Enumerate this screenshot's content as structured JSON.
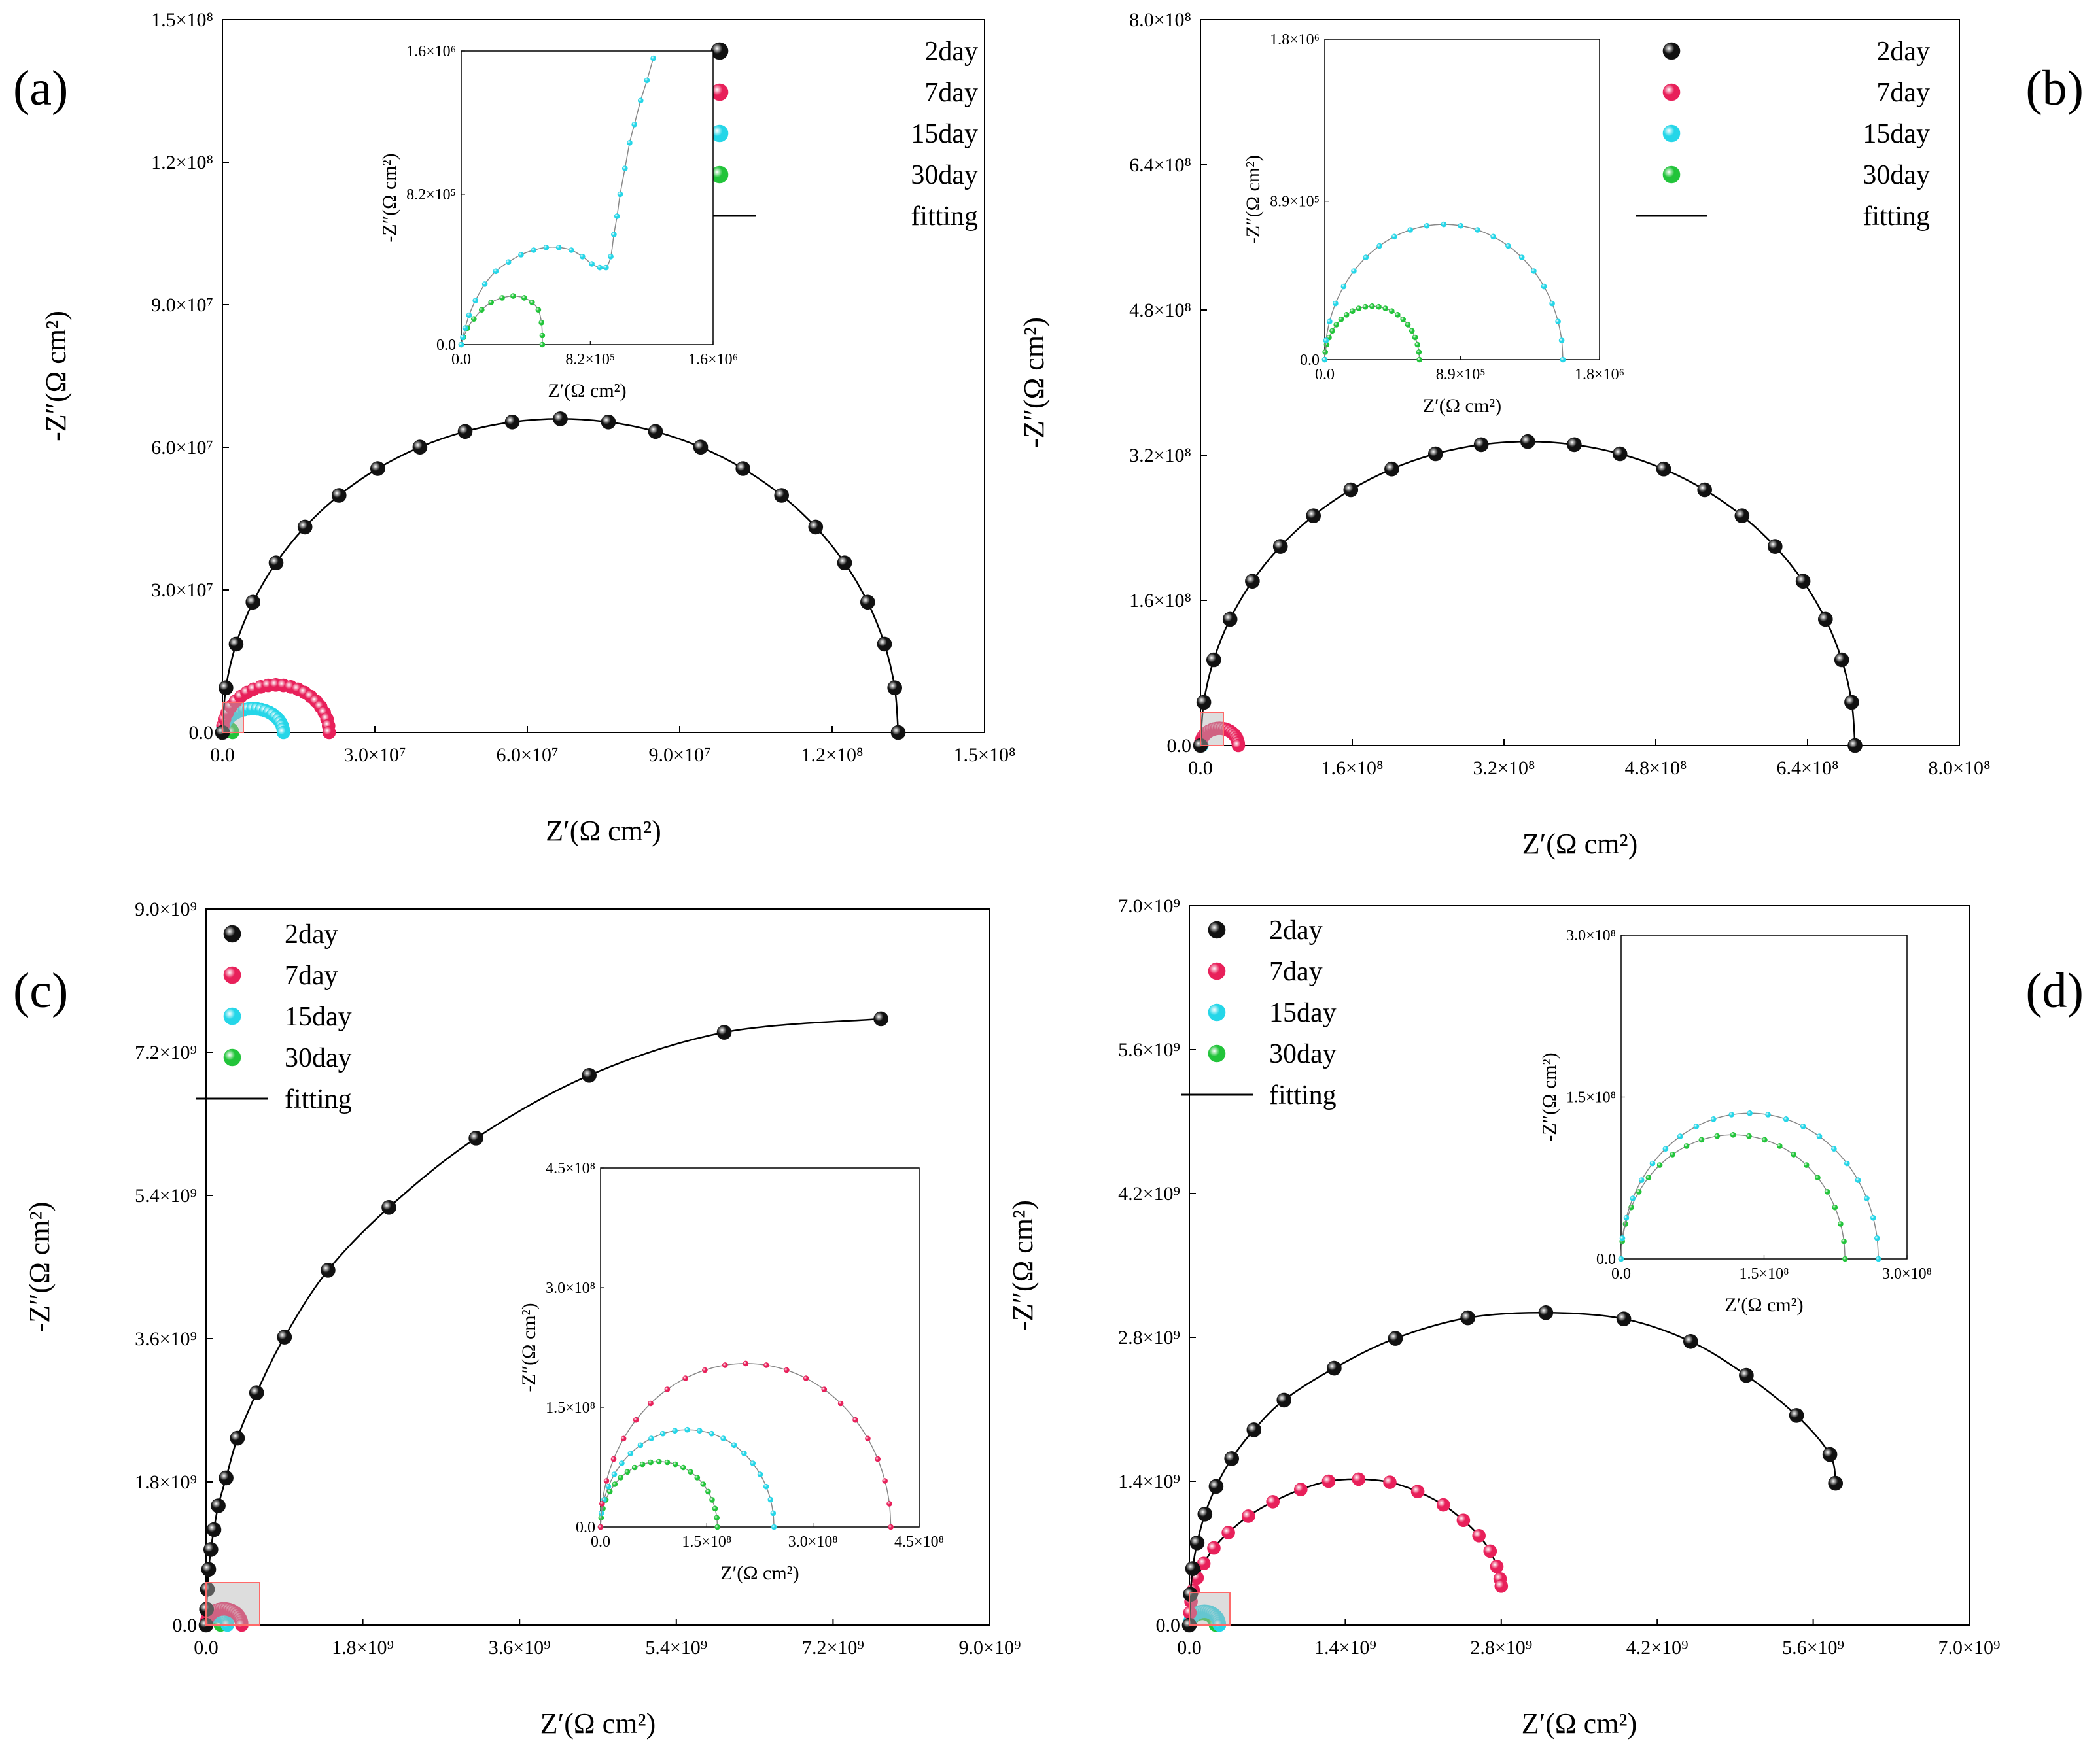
{
  "colors": {
    "2day": "#111111",
    "7day": "#e8205a",
    "15day": "#25d6e8",
    "30day": "#22c43a",
    "fit": "#000000",
    "inset_fit": "#888888",
    "zoom_box": "#ff6a6a"
  },
  "chart_data": [
    {
      "id": "a",
      "type": "scatter",
      "panel_label": "(a)",
      "xlabel": "Z′(Ω cm²)",
      "ylabel": "-Z″(Ω cm²)",
      "xlim": [
        0,
        150000000
      ],
      "ylim": [
        0,
        150000000
      ],
      "xticks": [
        0,
        30000000,
        60000000,
        90000000,
        120000000,
        150000000
      ],
      "xtick_labels": [
        "0.0",
        "3.0×10⁷",
        "6.0×10⁷",
        "9.0×10⁷",
        "1.2×10⁸",
        "1.5×10⁸"
      ],
      "yticks": [
        0,
        30000000,
        60000000,
        90000000,
        120000000,
        150000000
      ],
      "ytick_labels": [
        "0.0",
        "3.0×10⁷",
        "6.0×10⁷",
        "9.0×10⁷",
        "1.2×10⁸",
        "1.5×10⁸"
      ],
      "legend": {
        "position": "top-right",
        "entries": [
          "2day",
          "7day",
          "15day",
          "30day",
          "fitting"
        ]
      },
      "series": [
        {
          "name": "2day",
          "arc": {
            "x0": 0,
            "x1": 133000000,
            "peak": 66000000
          }
        },
        {
          "name": "7day",
          "arc": {
            "x0": 0,
            "x1": 21000000,
            "peak": 10000000
          }
        },
        {
          "name": "15day",
          "arc": {
            "x0": 0,
            "x1": 12000000,
            "peak": 5000000
          }
        },
        {
          "name": "30day",
          "arc": {
            "x0": 0,
            "x1": 2000000,
            "peak": 900000
          }
        }
      ],
      "inset": {
        "xlabel": "Z′(Ω cm²)",
        "ylabel": "-Z″(Ω cm²)",
        "xlim": [
          0,
          1600000
        ],
        "ylim": [
          0,
          1600000
        ],
        "xticks": [
          0,
          820000,
          1600000
        ],
        "xtick_labels": [
          "0.0",
          "8.2×10⁵",
          "1.6×10⁶"
        ],
        "yticks": [
          0,
          820000,
          1600000
        ],
        "ytick_labels": [
          "0.0",
          "8.2×10⁵",
          "1.6×10⁶"
        ],
        "series": [
          {
            "name": "15day",
            "points": [
              [
                0,
                0
              ],
              [
                10000,
                40000
              ],
              [
                25000,
                90000
              ],
              [
                50000,
                160000
              ],
              [
                90000,
                240000
              ],
              [
                150000,
                330000
              ],
              [
                220000,
                400000
              ],
              [
                300000,
                450000
              ],
              [
                380000,
                490000
              ],
              [
                460000,
                515000
              ],
              [
                540000,
                530000
              ],
              [
                620000,
                530000
              ],
              [
                700000,
                515000
              ],
              [
                770000,
                480000
              ],
              [
                830000,
                440000
              ],
              [
                880000,
                420000
              ],
              [
                920000,
                420000
              ],
              [
                950000,
                480000
              ],
              [
                970000,
                600000
              ],
              [
                990000,
                700000
              ],
              [
                1010000,
                820000
              ],
              [
                1040000,
                960000
              ],
              [
                1070000,
                1100000
              ],
              [
                1100000,
                1200000
              ],
              [
                1140000,
                1330000
              ],
              [
                1180000,
                1440000
              ],
              [
                1220000,
                1560000
              ]
            ]
          },
          {
            "name": "30day",
            "points": [
              [
                0,
                0
              ],
              [
                15000,
                40000
              ],
              [
                40000,
                90000
              ],
              [
                80000,
                140000
              ],
              [
                130000,
                190000
              ],
              [
                190000,
                230000
              ],
              [
                260000,
                255000
              ],
              [
                330000,
                265000
              ],
              [
                400000,
                255000
              ],
              [
                450000,
                230000
              ],
              [
                490000,
                190000
              ],
              [
                510000,
                120000
              ],
              [
                515000,
                50000
              ],
              [
                515000,
                0
              ]
            ]
          }
        ]
      }
    },
    {
      "id": "b",
      "type": "scatter",
      "panel_label": "(b)",
      "xlabel": "Z′(Ω cm²)",
      "ylabel": "-Z″(Ω cm²)",
      "xlim": [
        0,
        800000000
      ],
      "ylim": [
        0,
        800000000
      ],
      "xticks": [
        0,
        160000000,
        320000000,
        480000000,
        640000000,
        800000000
      ],
      "xtick_labels": [
        "0.0",
        "1.6×10⁸",
        "3.2×10⁸",
        "4.8×10⁸",
        "6.4×10⁸",
        "8.0×10⁸"
      ],
      "yticks": [
        0,
        160000000,
        320000000,
        480000000,
        640000000,
        800000000
      ],
      "ytick_labels": [
        "0.0",
        "1.6×10⁸",
        "3.2×10⁸",
        "4.8×10⁸",
        "6.4×10⁸",
        "8.0×10⁸"
      ],
      "legend": {
        "position": "top-right",
        "entries": [
          "2day",
          "7day",
          "15day",
          "30day",
          "fitting"
        ]
      },
      "series": [
        {
          "name": "2day",
          "arc": {
            "x0": 0,
            "x1": 690000000,
            "peak": 335000000
          }
        },
        {
          "name": "7day",
          "arc": {
            "x0": 0,
            "x1": 40000000,
            "peak": 19000000
          }
        },
        {
          "name": "15day",
          "arc": {
            "x0": 0,
            "x1": 1560000,
            "peak": 760000
          }
        },
        {
          "name": "30day",
          "arc": {
            "x0": 0,
            "x1": 620000,
            "peak": 300000
          }
        }
      ],
      "inset": {
        "xlabel": "Z′(Ω cm²)",
        "ylabel": "-Z″(Ω cm²)",
        "xlim": [
          0,
          1800000
        ],
        "ylim": [
          0,
          1800000
        ],
        "xticks": [
          0,
          890000,
          1800000
        ],
        "xtick_labels": [
          "0.0",
          "8.9×10⁵",
          "1.8×10⁶"
        ],
        "yticks": [
          0,
          890000,
          1800000
        ],
        "ytick_labels": [
          "0.0",
          "8.9×10⁵",
          "1.8×10⁶"
        ],
        "series": [
          {
            "name": "15day",
            "arc": {
              "x0": 0,
              "x1": 1560000,
              "peak": 760000
            }
          },
          {
            "name": "30day",
            "arc": {
              "x0": 0,
              "x1": 620000,
              "peak": 300000
            }
          }
        ]
      }
    },
    {
      "id": "c",
      "type": "scatter",
      "panel_label": "(c)",
      "xlabel": "Z′(Ω cm²)",
      "ylabel": "-Z″(Ω cm²)",
      "xlim": [
        0,
        9000000000
      ],
      "ylim": [
        0,
        9000000000
      ],
      "xticks": [
        0,
        1800000000,
        3600000000,
        5400000000,
        7200000000,
        9000000000
      ],
      "xtick_labels": [
        "0.0",
        "1.8×10⁹",
        "3.6×10⁹",
        "5.4×10⁹",
        "7.2×10⁹",
        "9.0×10⁹"
      ],
      "yticks": [
        0,
        1800000000,
        3600000000,
        5400000000,
        7200000000,
        9000000000
      ],
      "ytick_labels": [
        "0.0",
        "1.8×10⁹",
        "3.6×10⁹",
        "5.4×10⁹",
        "7.2×10⁹",
        "9.0×10⁹"
      ],
      "legend": {
        "position": "top-left",
        "entries": [
          "2day",
          "7day",
          "15day",
          "30day",
          "fitting"
        ]
      },
      "series": [
        {
          "name": "2day",
          "points": [
            [
              0,
              0
            ],
            [
              5000000,
              200000000
            ],
            [
              15000000,
              450000000
            ],
            [
              30000000,
              700000000
            ],
            [
              55000000,
              950000000
            ],
            [
              90000000,
              1200000000
            ],
            [
              140000000,
              1500000000
            ],
            [
              230000000,
              1850000000
            ],
            [
              360000000,
              2350000000
            ],
            [
              580000000,
              2920000000
            ],
            [
              900000000,
              3620000000
            ],
            [
              1400000000,
              4460000000
            ],
            [
              2100000000,
              5250000000
            ],
            [
              3100000000,
              6120000000
            ],
            [
              4400000000,
              6910000000
            ],
            [
              5950000000,
              7450000000
            ],
            [
              7750000000,
              7620000000
            ]
          ]
        },
        {
          "name": "7day",
          "arc": {
            "x0": 0,
            "x1": 410000000,
            "peak": 205000000
          }
        },
        {
          "name": "15day",
          "arc": {
            "x0": 0,
            "x1": 245000000,
            "peak": 122000000
          }
        },
        {
          "name": "30day",
          "arc": {
            "x0": 0,
            "x1": 165000000,
            "peak": 82000000
          }
        }
      ],
      "inset": {
        "xlabel": "Z′(Ω cm²)",
        "ylabel": "-Z″(Ω cm²)",
        "xlim": [
          0,
          450000000
        ],
        "ylim": [
          0,
          450000000
        ],
        "xticks": [
          0,
          150000000,
          300000000,
          450000000
        ],
        "xtick_labels": [
          "0.0",
          "1.5×10⁸",
          "3.0×10⁸",
          "4.5×10⁸"
        ],
        "yticks": [
          0,
          150000000,
          300000000,
          450000000
        ],
        "ytick_labels": [
          "0.0",
          "1.5×10⁸",
          "3.0×10⁸",
          "4.5×10⁸"
        ],
        "series": [
          {
            "name": "7day",
            "arc": {
              "x0": 0,
              "x1": 410000000,
              "peak": 205000000
            }
          },
          {
            "name": "15day",
            "arc": {
              "x0": 0,
              "x1": 245000000,
              "peak": 122000000
            }
          },
          {
            "name": "30day",
            "arc": {
              "x0": 0,
              "x1": 165000000,
              "peak": 82000000
            }
          }
        ]
      }
    },
    {
      "id": "d",
      "type": "scatter",
      "panel_label": "(d)",
      "xlabel": "Z′(Ω cm²)",
      "ylabel": "-Z″(Ω cm²)",
      "xlim": [
        0,
        7000000000
      ],
      "ylim": [
        0,
        7000000000
      ],
      "xticks": [
        0,
        1400000000,
        2800000000,
        4200000000,
        5600000000,
        7000000000
      ],
      "xtick_labels": [
        "0.0",
        "1.4×10⁹",
        "2.8×10⁹",
        "4.2×10⁹",
        "5.6×10⁹",
        "7.0×10⁹"
      ],
      "yticks": [
        0,
        1400000000,
        2800000000,
        4200000000,
        5600000000,
        7000000000
      ],
      "ytick_labels": [
        "0.0",
        "1.4×10⁹",
        "2.8×10⁹",
        "4.2×10⁹",
        "5.6×10⁹",
        "7.0×10⁹"
      ],
      "legend": {
        "position": "top-left",
        "entries": [
          "2day",
          "7day",
          "15day",
          "30day",
          "fitting"
        ]
      },
      "series": [
        {
          "name": "2day",
          "points": [
            [
              0,
              0
            ],
            [
              10000000,
              300000000
            ],
            [
              30000000,
              550000000
            ],
            [
              70000000,
              800000000
            ],
            [
              140000000,
              1080000000
            ],
            [
              240000000,
              1350000000
            ],
            [
              380000000,
              1620000000
            ],
            [
              580000000,
              1900000000
            ],
            [
              850000000,
              2190000000
            ],
            [
              1300000000,
              2500000000
            ],
            [
              1850000000,
              2790000000
            ],
            [
              2500000000,
              2990000000
            ],
            [
              3200000000,
              3040000000
            ],
            [
              3900000000,
              2980000000
            ],
            [
              4500000000,
              2760000000
            ],
            [
              5000000000,
              2430000000
            ],
            [
              5450000000,
              2040000000
            ],
            [
              5750000000,
              1660000000
            ],
            [
              5800000000,
              1380000000
            ]
          ]
        },
        {
          "name": "7day",
          "points": [
            [
              0,
              0
            ],
            [
              5000000,
              120000000
            ],
            [
              15000000,
              230000000
            ],
            [
              35000000,
              340000000
            ],
            [
              70000000,
              460000000
            ],
            [
              130000000,
              600000000
            ],
            [
              220000000,
              750000000
            ],
            [
              350000000,
              900000000
            ],
            [
              530000000,
              1060000000
            ],
            [
              750000000,
              1200000000
            ],
            [
              1000000000,
              1320000000
            ],
            [
              1250000000,
              1400000000
            ],
            [
              1520000000,
              1420000000
            ],
            [
              1800000000,
              1390000000
            ],
            [
              2050000000,
              1300000000
            ],
            [
              2280000000,
              1170000000
            ],
            [
              2460000000,
              1020000000
            ],
            [
              2600000000,
              870000000
            ],
            [
              2700000000,
              720000000
            ],
            [
              2760000000,
              570000000
            ],
            [
              2790000000,
              450000000
            ],
            [
              2800000000,
              380000000
            ]
          ]
        },
        {
          "name": "15day",
          "arc": {
            "x0": 0,
            "x1": 270000000,
            "peak": 135000000
          }
        },
        {
          "name": "30day",
          "arc": {
            "x0": 0,
            "x1": 235000000,
            "peak": 115000000
          }
        }
      ],
      "inset": {
        "xlabel": "Z′(Ω cm²)",
        "ylabel": "-Z″(Ω cm²)",
        "xlim": [
          0,
          300000000
        ],
        "ylim": [
          0,
          300000000
        ],
        "xticks": [
          0,
          150000000,
          300000000
        ],
        "xtick_labels": [
          "0.0",
          "1.5×10⁸",
          "3.0×10⁸"
        ],
        "yticks": [
          0,
          150000000,
          300000000
        ],
        "ytick_labels": [
          "0.0",
          "1.5×10⁸",
          "3.0×10⁸"
        ],
        "series": [
          {
            "name": "15day",
            "arc": {
              "x0": 0,
              "x1": 270000000,
              "peak": 135000000
            }
          },
          {
            "name": "30day",
            "arc": {
              "x0": 0,
              "x1": 235000000,
              "peak": 115000000
            }
          }
        ]
      }
    }
  ]
}
